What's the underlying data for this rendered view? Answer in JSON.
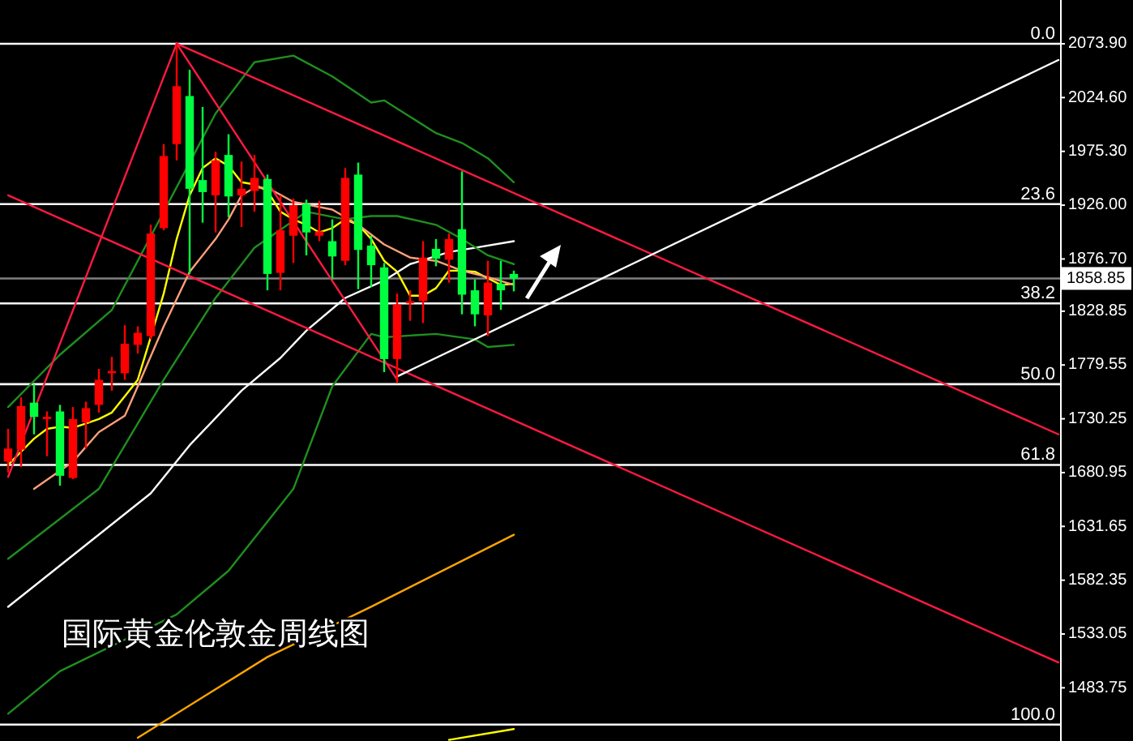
{
  "chart_data": {
    "type": "candlestick",
    "title": "国际黄金伦敦金周线图",
    "categories": [
      null,
      null,
      null,
      null,
      null,
      null,
      null,
      null,
      null,
      null,
      null,
      null,
      null,
      null,
      null,
      null,
      null,
      null,
      null,
      null,
      null,
      null,
      null,
      null,
      null,
      null,
      null,
      null,
      null,
      null,
      null,
      null,
      null,
      null,
      null,
      null,
      null,
      null,
      null,
      null,
      null,
      null,
      null,
      null,
      null,
      null,
      null,
      null,
      null,
      null,
      null,
      null,
      null,
      null,
      null,
      null,
      null,
      null,
      null,
      null,
      null,
      null,
      null,
      null,
      null,
      null,
      null,
      null,
      null,
      null,
      null,
      null,
      null,
      null,
      null,
      null,
      null,
      null,
      null,
      null,
      null,
      null
    ],
    "ohlc": [
      [
        1691,
        1721,
        1681,
        1703
      ],
      [
        1702,
        1750,
        1686,
        1742
      ],
      [
        1745,
        1762,
        1716,
        1732
      ],
      [
        1730,
        1737,
        1696,
        1732
      ],
      [
        1737,
        1743,
        1669,
        1678
      ],
      [
        1676,
        1741,
        1675,
        1730
      ],
      [
        1727,
        1746,
        1703,
        1740
      ],
      [
        1743,
        1776,
        1736,
        1766
      ],
      [
        1772,
        1787,
        1756,
        1774
      ],
      [
        1772,
        1816,
        1766,
        1799
      ],
      [
        1798,
        1815,
        1790,
        1809
      ],
      [
        1806,
        1908,
        1803,
        1900
      ],
      [
        1905,
        1982,
        1903,
        1971
      ],
      [
        1982,
        2074,
        1967,
        2035
      ],
      [
        2026,
        2050,
        1863,
        1941
      ],
      [
        1949,
        2016,
        1910,
        1938
      ],
      [
        1935,
        1975,
        1901,
        1967
      ],
      [
        1972,
        1991,
        1915,
        1934
      ],
      [
        1935,
        1966,
        1906,
        1941
      ],
      [
        1939,
        1972,
        1920,
        1951
      ],
      [
        1950,
        1954,
        1848,
        1863
      ],
      [
        1864,
        1935,
        1848,
        1903
      ],
      [
        1898,
        1932,
        1873,
        1926
      ],
      [
        1927,
        1931,
        1880,
        1901
      ],
      [
        1898,
        1930,
        1893,
        1902
      ],
      [
        1893,
        1913,
        1858,
        1879
      ],
      [
        1875,
        1960,
        1871,
        1951
      ],
      [
        1954,
        1965,
        1849,
        1885
      ],
      [
        1889,
        1898,
        1851,
        1871
      ],
      [
        1869,
        1873,
        1773,
        1785
      ],
      [
        1785,
        1845,
        1763,
        1835
      ],
      [
        1836,
        1848,
        1820,
        1838
      ],
      [
        1838,
        1893,
        1818,
        1878
      ],
      [
        1886,
        1895,
        1870,
        1877
      ],
      [
        1876,
        1900,
        1855,
        1895
      ],
      [
        1904,
        1957,
        1826,
        1844
      ],
      [
        1848,
        1858,
        1815,
        1826
      ],
      [
        1825,
        1875,
        1806,
        1855
      ],
      [
        1854,
        1875,
        1830,
        1848
      ],
      [
        1863,
        1866,
        1847,
        1858.85
      ],
      null,
      null,
      null,
      null,
      null,
      null,
      null,
      null,
      null,
      null,
      null,
      null,
      null,
      null,
      null,
      null,
      null,
      null,
      null,
      null,
      null,
      null,
      null,
      null,
      null,
      null,
      null,
      null,
      null,
      null,
      null,
      null,
      null,
      null,
      null,
      null,
      null,
      null,
      null,
      null,
      null,
      null
    ],
    "colors": [
      "#ff0000",
      "#ff0000",
      "#00ff40",
      "#ff0000",
      "#00ff40",
      "#ff0000",
      "#ff0000",
      "#ff0000",
      "#ff0000",
      "#ff0000",
      "#ff0000",
      "#ff0000",
      "#ff0000",
      "#ff0000",
      "#00ff40",
      "#00ff40",
      "#ff0000",
      "#00ff40",
      "#ff0000",
      "#ff0000",
      "#00ff40",
      "#ff0000",
      "#ff0000",
      "#00ff40",
      "#ff0000",
      "#00ff40",
      "#ff0000",
      "#00ff40",
      "#00ff40",
      "#00ff40",
      "#ff0000",
      "#ff0000",
      "#ff0000",
      "#00ff40",
      "#ff0000",
      "#00ff40",
      "#00ff40",
      "#ff0000",
      "#00ff40",
      "#00ff40",
      null,
      null,
      null,
      null,
      null,
      null,
      null,
      null,
      null,
      null,
      null,
      null,
      null,
      null,
      null,
      null,
      null,
      null,
      null,
      null,
      null,
      null,
      null,
      null,
      null,
      null,
      null,
      null,
      null,
      null,
      null,
      null,
      null,
      null,
      null,
      null,
      null,
      null,
      null,
      null,
      null,
      null
    ],
    "series": [
      {
        "type": "line",
        "color": "#ffff00",
        "values": [
          1688,
          1700,
          1712,
          1721,
          1723,
          1722,
          1726,
          1730,
          1736,
          1751,
          1766,
          1805,
          1845,
          1895,
          1935,
          1960,
          1969,
          1962,
          1947,
          1945,
          1939,
          1920,
          1913,
          1908,
          1901,
          1905,
          1913,
          1908,
          1895,
          1875,
          1865,
          1843,
          1843,
          1850,
          1866,
          1866,
          1865,
          1859,
          1853,
          1854,
          null,
          null,
          null,
          null,
          null,
          null,
          null,
          null,
          null,
          null,
          null,
          null,
          null,
          null,
          null,
          null,
          null,
          null,
          null,
          null,
          null,
          null,
          null,
          null,
          null,
          null,
          null,
          null,
          null,
          null,
          null,
          null,
          null,
          null,
          null,
          null,
          null,
          null,
          null,
          null,
          null,
          null
        ]
      },
      {
        "type": "line",
        "color": "#ffa07a",
        "values": [
          null,
          null,
          1666,
          null,
          null,
          1691,
          null,
          1718,
          null,
          1733,
          1760,
          null,
          1815,
          null,
          1865,
          null,
          1895,
          1913,
          1935,
          1942,
          1942,
          null,
          1929,
          null,
          null,
          1922,
          null,
          1908,
          null,
          1890,
          null,
          1878,
          null,
          1875,
          null,
          1866,
          null,
          1860,
          null,
          1853,
          null,
          null,
          null,
          null,
          null,
          null,
          null,
          null,
          null,
          null,
          null,
          null,
          null,
          null,
          null,
          null,
          null,
          null,
          null,
          null,
          null,
          null,
          null,
          null,
          null,
          null,
          null,
          null,
          null,
          null,
          null,
          null,
          null,
          null,
          null,
          null,
          null,
          null,
          null,
          null,
          null,
          null
        ]
      },
      {
        "type": "line",
        "color": "#ffffff",
        "values": [
          1558,
          null,
          null,
          null,
          null,
          null,
          null,
          null,
          null,
          null,
          null,
          1662,
          null,
          null,
          1706,
          null,
          null,
          null,
          1756,
          null,
          null,
          1786,
          null,
          1811,
          null,
          null,
          1841,
          null,
          null,
          1857,
          null,
          1872,
          null,
          null,
          1883,
          null,
          1887,
          null,
          null,
          1893,
          null,
          null,
          null,
          null,
          null,
          null,
          null,
          null,
          null,
          null,
          null,
          null,
          null,
          null,
          null,
          null,
          null,
          null,
          null,
          null,
          null,
          null,
          null,
          null,
          null,
          null,
          null,
          null,
          null,
          null,
          null,
          null,
          null,
          null,
          null,
          null,
          null,
          null,
          null,
          null,
          null,
          null
        ]
      },
      {
        "type": "line",
        "color": "#1f8f1f",
        "values": [
          1741,
          null,
          null,
          null,
          1789,
          null,
          null,
          null,
          1830,
          null,
          null,
          null,
          null,
          null,
          null,
          null,
          2010,
          null,
          null,
          2057,
          null,
          null,
          2063,
          null,
          null,
          2044,
          null,
          null,
          2020,
          2022,
          null,
          null,
          null,
          1992,
          null,
          1983,
          null,
          1969,
          null,
          1947,
          null,
          null,
          null,
          null,
          null,
          null,
          null,
          null,
          null,
          null,
          null,
          null,
          null,
          null,
          null,
          null,
          null,
          null,
          null,
          null,
          null,
          null,
          null,
          null,
          null,
          null,
          null,
          null,
          null,
          null,
          null,
          null,
          null,
          null,
          null,
          null,
          null,
          null,
          null,
          null,
          null,
          null
        ]
      },
      {
        "type": "line",
        "color": "#1f8f1f",
        "values": [
          1602,
          null,
          null,
          null,
          null,
          null,
          null,
          1666,
          null,
          null,
          null,
          null,
          1766,
          null,
          null,
          null,
          1841,
          null,
          null,
          1887,
          null,
          null,
          null,
          1920,
          null,
          null,
          1913,
          null,
          1916,
          null,
          1916,
          null,
          null,
          1908,
          null,
          1895,
          null,
          1880,
          null,
          1872,
          null,
          null,
          null,
          null,
          null,
          null,
          null,
          null,
          null,
          null,
          null,
          null,
          null,
          null,
          null,
          null,
          null,
          null,
          null,
          null,
          null,
          null,
          null,
          null,
          null,
          null,
          null,
          null,
          null,
          null,
          null,
          null,
          null,
          null,
          null,
          null,
          null,
          null,
          null,
          null,
          null,
          null
        ]
      },
      {
        "type": "line",
        "color": "#1f8f1f",
        "values": [
          1460,
          null,
          null,
          null,
          1499,
          null,
          null,
          null,
          null,
          null,
          null,
          null,
          null,
          1551,
          null,
          null,
          null,
          1591,
          null,
          null,
          null,
          null,
          1666,
          null,
          null,
          1760,
          null,
          null,
          1808,
          1805,
          null,
          null,
          null,
          1808,
          null,
          null,
          1803,
          1796,
          null,
          1798,
          null,
          null,
          null,
          null,
          null,
          null,
          null,
          null,
          null,
          null,
          null,
          null,
          null,
          null,
          null,
          null,
          null,
          null,
          null,
          null,
          null,
          null,
          null,
          null,
          null,
          null,
          null,
          null,
          null,
          null,
          null,
          null,
          null,
          null,
          null,
          null,
          null,
          null,
          null,
          null,
          null,
          null
        ]
      },
      {
        "type": "line",
        "color": "#ffa500",
        "values": [
          null,
          null,
          null,
          null,
          null,
          null,
          null,
          null,
          null,
          null,
          1438,
          null,
          null,
          null,
          null,
          null,
          null,
          null,
          null,
          null,
          1512,
          null,
          null,
          null,
          null,
          null,
          null,
          null,
          1558,
          null,
          null,
          null,
          null,
          null,
          null,
          null,
          null,
          null,
          null,
          1624,
          null,
          null,
          null,
          null,
          null,
          null,
          null,
          null,
          null,
          null,
          null,
          null,
          null,
          null,
          null,
          null,
          null,
          null,
          null,
          null,
          null,
          null,
          null,
          null,
          null,
          null,
          null,
          null,
          null,
          null,
          null,
          null,
          null,
          null,
          null,
          null,
          null,
          null,
          null,
          null,
          null,
          null
        ]
      },
      {
        "type": "line",
        "color": "#ffff00",
        "values": [
          null,
          null,
          null,
          null,
          null,
          null,
          null,
          null,
          null,
          null,
          null,
          null,
          null,
          null,
          null,
          null,
          null,
          null,
          null,
          null,
          null,
          null,
          null,
          null,
          null,
          null,
          null,
          null,
          null,
          null,
          null,
          null,
          null,
          null,
          1436,
          null,
          null,
          null,
          null,
          1446,
          null,
          null,
          null,
          null,
          null,
          null,
          null,
          null,
          null,
          null,
          null,
          null,
          null,
          null,
          null,
          null,
          null,
          null,
          null,
          null,
          null,
          null,
          null,
          null,
          null,
          null,
          null,
          null,
          null,
          null,
          null,
          null,
          null,
          null,
          null,
          null,
          null,
          null,
          null,
          null,
          null,
          null
        ]
      },
      {
        "type": "line",
        "color": "#ff1a40",
        "values": [
          1677,
          null,
          null,
          null,
          null,
          null,
          null,
          null,
          null,
          null,
          null,
          null,
          null,
          2074,
          null,
          null,
          null,
          null,
          null,
          null,
          null,
          null,
          null,
          null,
          null,
          null,
          null,
          null,
          null,
          null,
          null,
          null,
          null,
          null,
          null,
          null,
          null,
          null,
          null,
          null,
          null,
          null,
          null,
          null,
          null,
          null,
          null,
          null,
          null,
          null,
          null,
          null,
          null,
          null,
          null,
          null,
          null,
          null,
          null,
          null,
          null,
          null,
          null,
          null,
          null,
          null,
          null,
          null,
          null,
          null,
          null,
          null,
          null,
          null,
          null,
          null,
          null,
          null,
          null,
          null,
          null,
          null
        ]
      },
      {
        "type": "line",
        "color": "#ff1a40",
        "values": [
          null,
          null,
          null,
          null,
          null,
          null,
          null,
          null,
          null,
          null,
          null,
          null,
          null,
          2074,
          null,
          null,
          null,
          null,
          null,
          null,
          null,
          null,
          null,
          null,
          null,
          null,
          null,
          null,
          null,
          null,
          1766,
          null,
          null,
          null,
          null,
          null,
          null,
          null,
          null,
          null,
          null,
          null,
          null,
          null,
          null,
          null,
          null,
          null,
          null,
          null,
          null,
          null,
          null,
          null,
          null,
          null,
          null,
          null,
          null,
          null,
          null,
          null,
          null,
          null,
          null,
          null,
          null,
          null,
          null,
          null,
          null,
          null,
          null,
          null,
          null,
          null,
          null,
          null,
          null,
          null,
          null,
          null
        ]
      },
      {
        "type": "line",
        "color": "#ff1a40",
        "values": [
          null,
          null,
          null,
          null,
          null,
          null,
          null,
          null,
          null,
          null,
          null,
          null,
          null,
          2074,
          null,
          null,
          null,
          null,
          null,
          null,
          null,
          null,
          null,
          null,
          null,
          null,
          null,
          null,
          null,
          null,
          null,
          null,
          null,
          null,
          null,
          null,
          null,
          null,
          null,
          null,
          null,
          null,
          null,
          null,
          null,
          null,
          null,
          null,
          null,
          null,
          null,
          null,
          null,
          null,
          null,
          null,
          null,
          null,
          null,
          null,
          null,
          null,
          null,
          null,
          null,
          null,
          null,
          null,
          null,
          null,
          null,
          null,
          null,
          null,
          null,
          null,
          null,
          null,
          null,
          null,
          null,
          1716
        ]
      },
      {
        "type": "line",
        "color": "#ff1a40",
        "values": [
          1935,
          null,
          null,
          null,
          null,
          null,
          null,
          null,
          null,
          null,
          null,
          null,
          null,
          null,
          null,
          null,
          null,
          null,
          null,
          null,
          null,
          null,
          null,
          null,
          null,
          null,
          null,
          null,
          null,
          null,
          null,
          null,
          null,
          null,
          null,
          null,
          null,
          null,
          null,
          null,
          null,
          null,
          null,
          null,
          null,
          null,
          null,
          null,
          null,
          null,
          null,
          null,
          null,
          null,
          null,
          null,
          null,
          null,
          null,
          null,
          null,
          null,
          null,
          null,
          null,
          null,
          null,
          null,
          null,
          null,
          null,
          null,
          null,
          null,
          null,
          null,
          null,
          null,
          null,
          null,
          null,
          1507
        ]
      },
      {
        "type": "line",
        "color": "#ffffff",
        "values": [
          null,
          null,
          null,
          null,
          null,
          null,
          null,
          null,
          null,
          null,
          null,
          null,
          null,
          null,
          null,
          null,
          null,
          null,
          null,
          null,
          null,
          null,
          null,
          null,
          null,
          null,
          null,
          null,
          null,
          null,
          1769,
          null,
          null,
          null,
          null,
          null,
          null,
          null,
          null,
          null,
          null,
          null,
          null,
          null,
          null,
          null,
          null,
          null,
          null,
          null,
          null,
          null,
          null,
          null,
          null,
          null,
          null,
          null,
          null,
          null,
          null,
          null,
          null,
          null,
          null,
          null,
          null,
          null,
          null,
          null,
          null,
          null,
          null,
          null,
          null,
          null,
          null,
          null,
          null,
          null,
          null,
          2059
        ]
      }
    ],
    "ylim": [
      1435,
      2114
    ],
    "yticks": [
      {
        "value": 2073.9,
        "label": "2073.90"
      },
      {
        "value": 2024.6,
        "label": "2024.60"
      },
      {
        "value": 1975.3,
        "label": "1975.30"
      },
      {
        "value": 1926,
        "label": "1926.00"
      },
      {
        "value": 1876.7,
        "label": "1876.70"
      },
      {
        "value": 1828.85,
        "label": "1828.85"
      },
      {
        "value": 1779.55,
        "label": "1779.55"
      },
      {
        "value": 1730.25,
        "label": "1730.25"
      },
      {
        "value": 1680.95,
        "label": "1680.95"
      },
      {
        "value": 1631.65,
        "label": "1631.65"
      },
      {
        "value": 1582.35,
        "label": "1582.35"
      },
      {
        "value": 1533.05,
        "label": "1533.05"
      },
      {
        "value": 1483.75,
        "label": "1483.75"
      }
    ],
    "ref_lines": [
      {
        "axis": "y",
        "value": 2073.9,
        "color": "#ffffff"
      },
      {
        "axis": "y",
        "value": 1927,
        "color": "#ffffff"
      },
      {
        "axis": "y",
        "value": 1836,
        "color": "#ffffff"
      },
      {
        "axis": "y",
        "value": 1762,
        "color": "#ffffff"
      },
      {
        "axis": "y",
        "value": 1688,
        "color": "#ffffff"
      },
      {
        "axis": "y",
        "value": 1450,
        "color": "#ffffff"
      },
      {
        "axis": "y",
        "value": 1858.85,
        "label": "1858.85",
        "color": "#808080"
      }
    ],
    "annotations": [
      {
        "text": "0.0",
        "y": 2073.9
      },
      {
        "text": "23.6",
        "y": 1927
      },
      {
        "text": "38.2",
        "y": 1836
      },
      {
        "text": "50.0",
        "y": 1762
      },
      {
        "text": "61.8",
        "y": 1688
      },
      {
        "text": "100.0",
        "y": 1450
      }
    ],
    "grid": false,
    "tick_labels": "y"
  }
}
